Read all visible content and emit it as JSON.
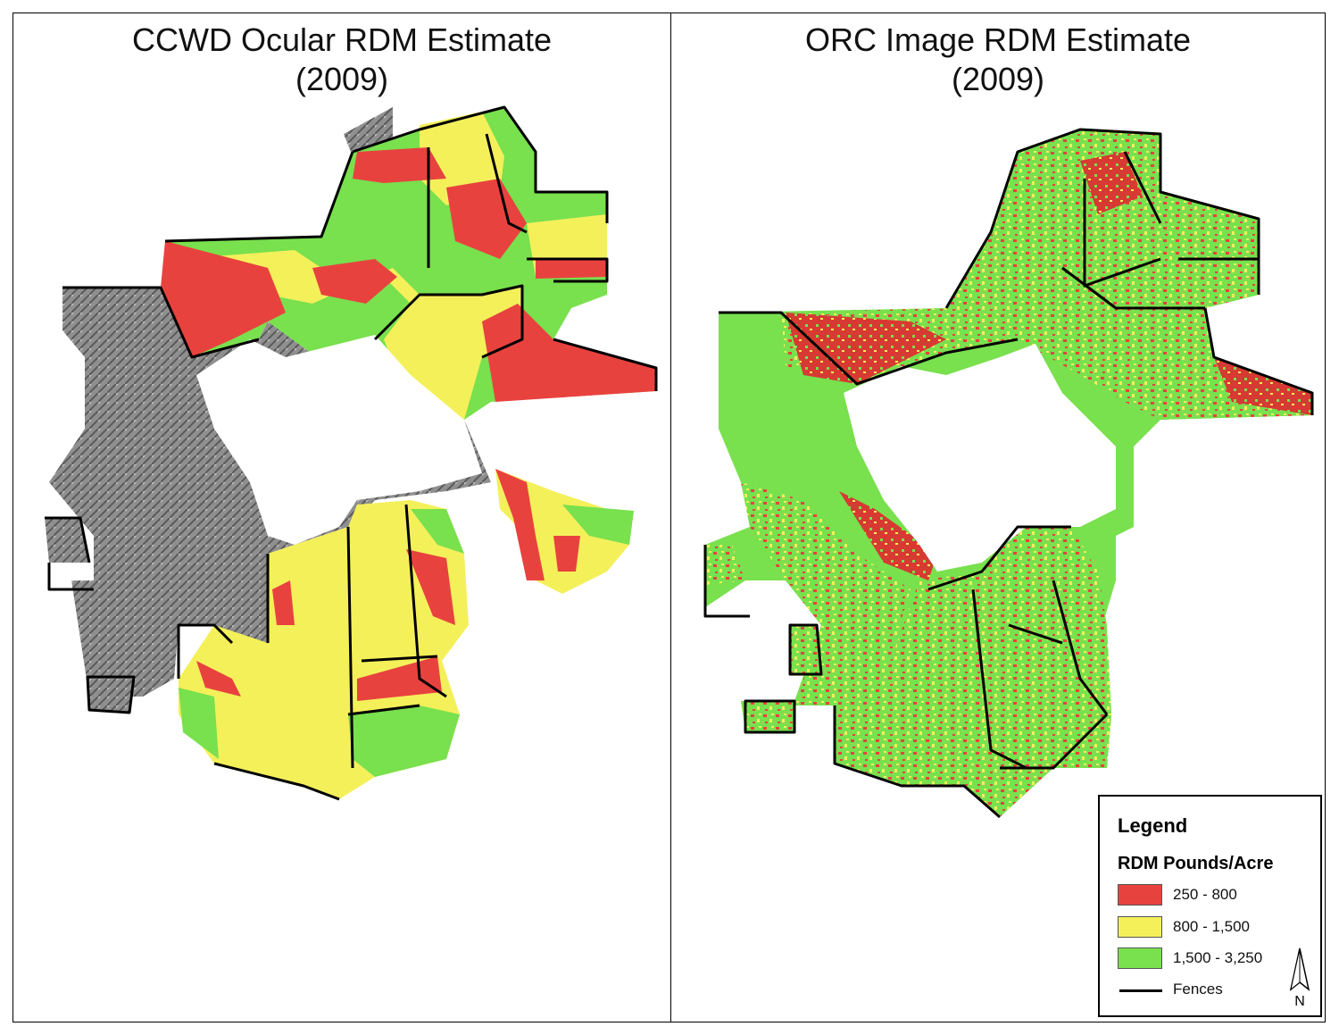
{
  "panels": {
    "left": {
      "title_line1": "CCWD Ocular RDM Estimate",
      "title_line2": "(2009)"
    },
    "right": {
      "title_line1": "ORC Image RDM Estimate",
      "title_line2": "(2009)"
    }
  },
  "legend": {
    "title": "Legend",
    "subtitle": "RDM Pounds/Acre",
    "items": [
      {
        "label": "250 - 800",
        "color": "#e8423f"
      },
      {
        "label": "800 - 1,500",
        "color": "#f4f05a"
      },
      {
        "label": "1,500 - 3,250",
        "color": "#79e04e"
      }
    ],
    "fences_label": "Fences",
    "north_label": "N"
  },
  "colors": {
    "red": "#e8423f",
    "yellow": "#f4f05a",
    "green": "#79e04e",
    "hillshade": "#8c8c8c",
    "fence": "#000000"
  }
}
